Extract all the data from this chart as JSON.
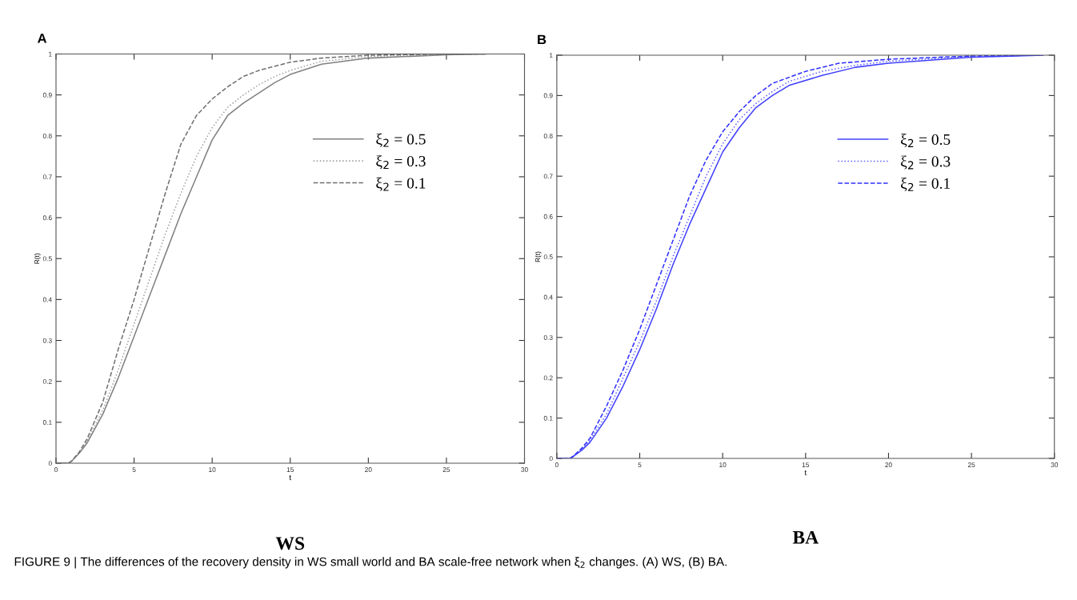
{
  "chart_data": [
    {
      "type": "line",
      "title": "A",
      "xlabel": "t",
      "ylabel": "R(t)",
      "xlim": [
        0,
        30
      ],
      "xticks": [
        0,
        5,
        10,
        15,
        20,
        25,
        30
      ],
      "ylim": [
        0,
        1
      ],
      "yticks": [
        0,
        0.1,
        0.2,
        0.3,
        0.4,
        0.5,
        0.6,
        0.7,
        0.8,
        0.9,
        1
      ],
      "legend": "top right",
      "grid": false,
      "annotations": [
        "WS",
        "FIGURE 9 | The differences of the recovery density in WS small world and BA scale-free network when ξ$_{2}$ changes. (A) WS, (B) BA."
      ],
      "series": [
        {
          "name": "ξ$_{2}$ = 0.5",
          "color": "#808080",
          "line_style": "solid",
          "x": [
            0,
            0.8,
            1,
            1.5,
            2,
            3,
            4,
            5,
            6,
            7,
            8,
            9,
            10,
            11,
            12,
            13,
            14,
            15,
            17,
            20,
            25,
            27.5
          ],
          "values": [
            0,
            0,
            0.005,
            0.025,
            0.05,
            0.12,
            0.21,
            0.31,
            0.41,
            0.51,
            0.61,
            0.7,
            0.79,
            0.85,
            0.88,
            0.905,
            0.93,
            0.95,
            0.975,
            0.99,
            0.998,
            1
          ]
        },
        {
          "name": "ξ$_{2}$ = 0.3",
          "color": "#a0a0a0",
          "line_style": "dotted",
          "x": [
            0,
            0.8,
            1,
            1.5,
            2,
            3,
            4,
            5,
            6,
            7,
            8,
            9,
            10,
            11,
            12,
            13,
            14,
            15,
            17,
            20,
            25,
            27.5
          ],
          "values": [
            0,
            0,
            0.005,
            0.026,
            0.055,
            0.13,
            0.23,
            0.34,
            0.45,
            0.56,
            0.66,
            0.75,
            0.82,
            0.87,
            0.9,
            0.925,
            0.945,
            0.96,
            0.982,
            0.994,
            0.999,
            1
          ]
        },
        {
          "name": "ξ$_{2}$ = 0.1",
          "color": "#707070",
          "line_style": "dashed",
          "x": [
            0,
            0.8,
            1,
            1.5,
            2,
            3,
            4,
            5,
            6,
            7,
            8,
            9,
            10,
            11,
            12,
            13,
            15,
            17,
            20,
            25,
            27.5
          ],
          "values": [
            0,
            0,
            0.005,
            0.028,
            0.06,
            0.15,
            0.28,
            0.4,
            0.53,
            0.66,
            0.78,
            0.85,
            0.89,
            0.92,
            0.945,
            0.96,
            0.98,
            0.99,
            0.997,
            1,
            1
          ]
        }
      ]
    },
    {
      "type": "line",
      "title": "B",
      "xlabel": "t",
      "ylabel": "R(t)",
      "xlim": [
        0,
        30
      ],
      "xticks": [
        0,
        5,
        10,
        15,
        20,
        25,
        30
      ],
      "ylim": [
        0,
        1
      ],
      "yticks": [
        0,
        0.1,
        0.2,
        0.3,
        0.4,
        0.5,
        0.6,
        0.7,
        0.8,
        0.9,
        1
      ],
      "legend": "top right",
      "grid": false,
      "annotations": [
        "BA"
      ],
      "series": [
        {
          "name": "ξ$_{2}$ = 0.5",
          "color": "#4040ff",
          "line_style": "solid",
          "x": [
            0,
            0.8,
            1,
            1.5,
            2,
            3,
            4,
            5,
            6,
            7,
            8,
            9,
            10,
            11,
            12,
            13,
            14,
            16,
            18,
            20,
            25,
            29.3
          ],
          "values": [
            0,
            0,
            0.005,
            0.02,
            0.04,
            0.1,
            0.18,
            0.27,
            0.37,
            0.48,
            0.58,
            0.67,
            0.76,
            0.82,
            0.87,
            0.9,
            0.925,
            0.95,
            0.97,
            0.98,
            0.995,
            1
          ]
        },
        {
          "name": "ξ$_{2}$ = 0.3",
          "color": "#6060ff",
          "line_style": "dotted",
          "x": [
            0,
            0.8,
            1,
            1.5,
            2,
            3,
            4,
            5,
            6,
            7,
            8,
            9,
            10,
            11,
            12,
            13,
            14,
            16,
            18,
            20,
            25
          ],
          "values": [
            0,
            0,
            0.005,
            0.022,
            0.045,
            0.11,
            0.2,
            0.29,
            0.39,
            0.5,
            0.6,
            0.7,
            0.78,
            0.84,
            0.88,
            0.91,
            0.935,
            0.96,
            0.975,
            0.985,
            0.997
          ]
        },
        {
          "name": "ξ$_{2}$ = 0.1",
          "color": "#3030ff",
          "line_style": "dashed",
          "x": [
            0,
            0.8,
            1,
            1.5,
            2,
            3,
            4,
            5,
            6,
            7,
            8,
            9,
            10,
            11,
            12,
            13,
            15,
            17,
            20,
            25,
            29.3
          ],
          "values": [
            0,
            0,
            0.006,
            0.025,
            0.05,
            0.13,
            0.22,
            0.32,
            0.43,
            0.54,
            0.65,
            0.74,
            0.81,
            0.86,
            0.9,
            0.93,
            0.96,
            0.98,
            0.99,
            0.998,
            1
          ]
        }
      ]
    }
  ]
}
